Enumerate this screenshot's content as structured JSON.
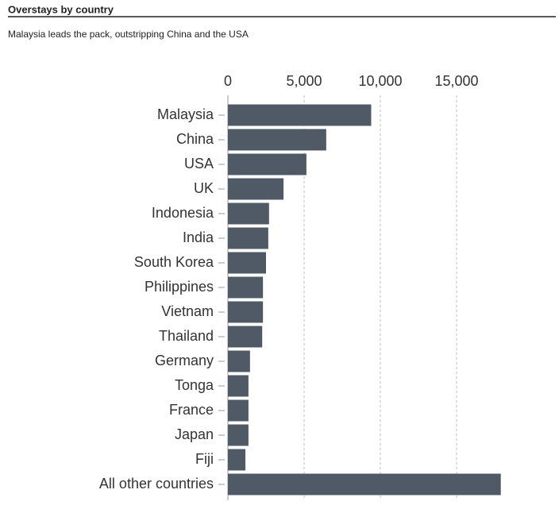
{
  "chart_data": {
    "type": "bar",
    "orientation": "horizontal",
    "title": "Overstays by country",
    "subtitle": "Malaysia leads the pack, outstripping China and the USA",
    "categories": [
      "Malaysia",
      "China",
      "USA",
      "UK",
      "Indonesia",
      "India",
      "South Korea",
      "Philippines",
      "Vietnam",
      "Thailand",
      "Germany",
      "Tonga",
      "France",
      "Japan",
      "Fiji",
      "All other countries"
    ],
    "values": [
      9400,
      6450,
      5150,
      3650,
      2700,
      2650,
      2500,
      2300,
      2300,
      2250,
      1450,
      1350,
      1350,
      1350,
      1150,
      17900
    ],
    "color": "#505a67",
    "xlim": [
      0,
      18000
    ],
    "xticks": [
      0,
      {
        "value": 5000,
        "label": "5,000"
      },
      {
        "value": 10000,
        "label": "10,000"
      },
      {
        "value": 15000,
        "label": "15,000"
      }
    ],
    "grid": true
  }
}
